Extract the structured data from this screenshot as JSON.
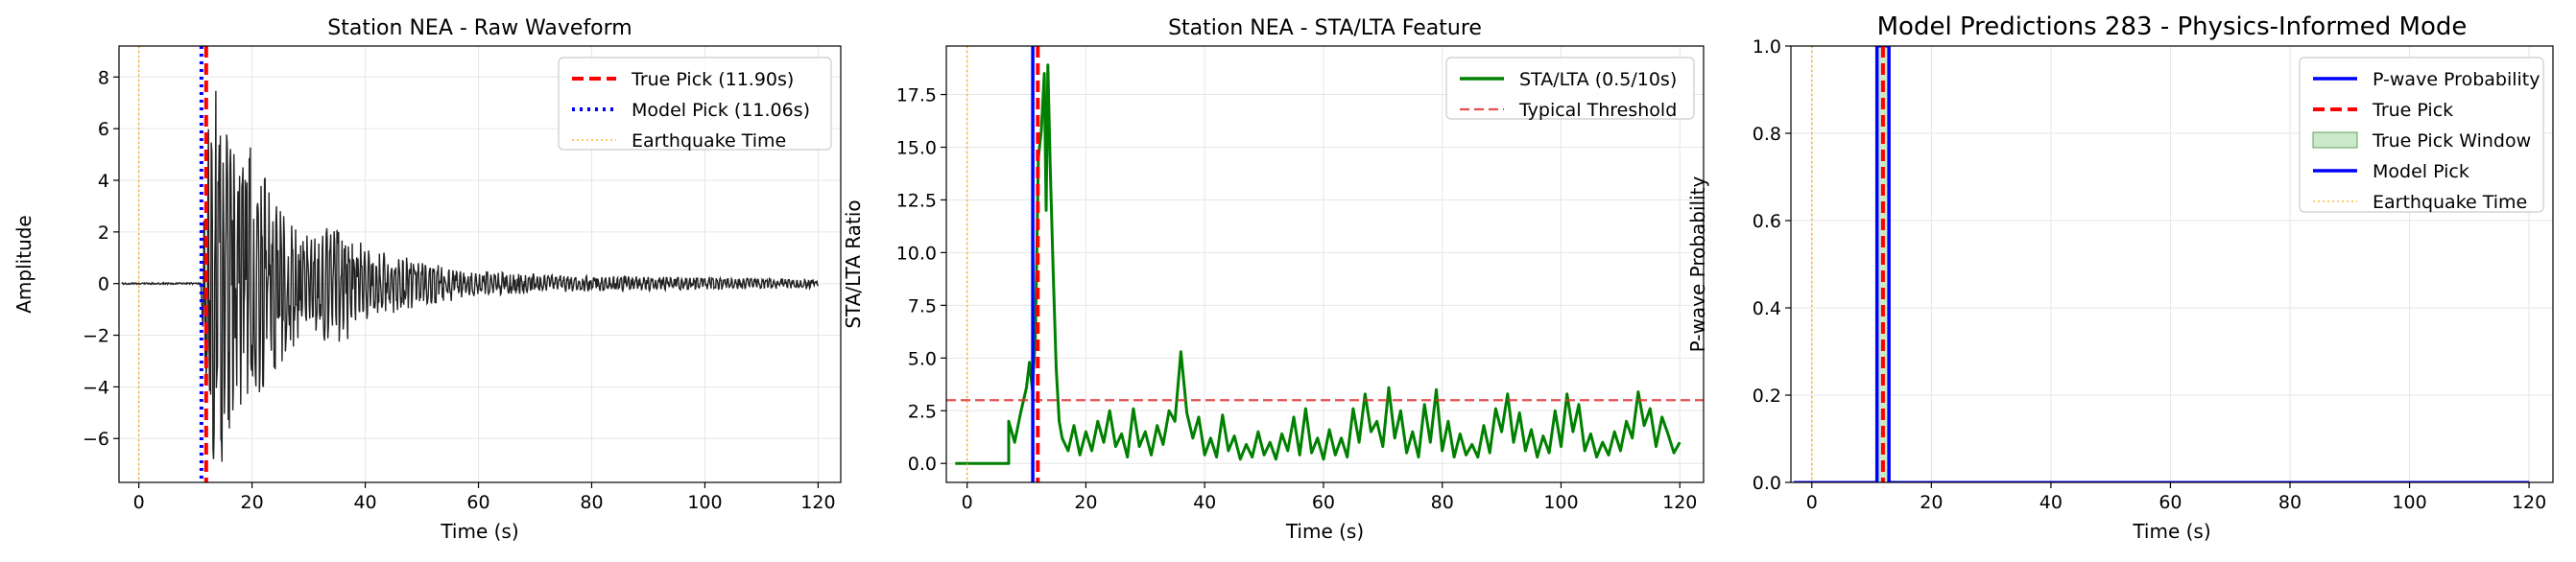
{
  "colors": {
    "waveform": "#222222",
    "true_pick": "#ff0000",
    "model_pick_dotted": "#0000ff",
    "model_pick": "#0000ff",
    "earthquake": "#ffa500",
    "sta_lta": "#008000",
    "threshold": "#e03030",
    "pick_window": "#a6d8a6",
    "grid": "#e6e6e6"
  },
  "chart_data": [
    {
      "type": "line",
      "title": "Station NEA - Raw Waveform",
      "xlabel": "Time (s)",
      "ylabel": "Amplitude",
      "xlim": [
        -3.5,
        124
      ],
      "ylim": [
        -7.7,
        9.2
      ],
      "xticks": [
        0,
        20,
        40,
        60,
        80,
        100,
        120
      ],
      "xtick_labels": [
        "0",
        "20",
        "40",
        "60",
        "80",
        "100",
        "120"
      ],
      "yticks": [
        -6,
        -4,
        -2,
        0,
        2,
        4,
        6,
        8
      ],
      "ytick_labels": [
        "−6",
        "−4",
        "−2",
        "0",
        "2",
        "4",
        "6",
        "8"
      ],
      "grid": true,
      "legend_position": "upper-right",
      "legend": [
        {
          "label": "True Pick (11.90s)",
          "style": "dashed-thick",
          "color_key": "true_pick"
        },
        {
          "label": "Model Pick (11.06s)",
          "style": "dotted-thick",
          "color_key": "model_pick_dotted"
        },
        {
          "label": "Earthquake Time",
          "style": "dotted-thin",
          "color_key": "earthquake"
        }
      ],
      "vlines": [
        {
          "x": 11.9,
          "style": "dashed-thick",
          "color_key": "true_pick"
        },
        {
          "x": 11.06,
          "style": "dotted-thick",
          "color_key": "model_pick_dotted"
        },
        {
          "x": 0,
          "style": "dotted-thin",
          "color_key": "earthquake"
        }
      ],
      "hlines": [],
      "waveform": {
        "name": "waveform",
        "t_start": -3,
        "t_onset": 11.0,
        "t_end": 120,
        "envelope": [
          [
            11,
            2.0
          ],
          [
            13,
            8.4
          ],
          [
            15,
            7.0
          ],
          [
            20,
            5.5
          ],
          [
            25,
            3.2
          ],
          [
            30,
            2.0
          ],
          [
            36,
            2.5
          ],
          [
            40,
            1.4
          ],
          [
            50,
            0.9
          ],
          [
            60,
            0.5
          ],
          [
            80,
            0.32
          ],
          [
            100,
            0.26
          ],
          [
            120,
            0.18
          ]
        ]
      }
    },
    {
      "type": "line",
      "title": "Station NEA - STA/LTA Feature",
      "xlabel": "Time (s)",
      "ylabel": "STA/LTA Ratio",
      "xlim": [
        -3.5,
        124
      ],
      "ylim": [
        -0.9,
        19.8
      ],
      "xticks": [
        0,
        20,
        40,
        60,
        80,
        100,
        120
      ],
      "xtick_labels": [
        "0",
        "20",
        "40",
        "60",
        "80",
        "100",
        "120"
      ],
      "yticks": [
        0.0,
        2.5,
        5.0,
        7.5,
        10.0,
        12.5,
        15.0,
        17.5
      ],
      "ytick_labels": [
        "0.0",
        "2.5",
        "5.0",
        "7.5",
        "10.0",
        "12.5",
        "15.0",
        "17.5"
      ],
      "grid": true,
      "legend_position": "upper-right",
      "legend": [
        {
          "label": "STA/LTA (0.5/10s)",
          "style": "solid",
          "color_key": "sta_lta"
        },
        {
          "label": "Typical Threshold",
          "style": "dashed-thin",
          "color_key": "threshold"
        }
      ],
      "vlines": [
        {
          "x": 11.06,
          "style": "solid-thick",
          "color_key": "model_pick"
        },
        {
          "x": 11.9,
          "style": "dashed-thick",
          "color_key": "true_pick"
        },
        {
          "x": 0,
          "style": "dotted-thin",
          "color_key": "earthquake"
        }
      ],
      "hlines": [
        {
          "y": 3.0,
          "style": "dashed-thin",
          "color_key": "threshold"
        }
      ],
      "series": [
        {
          "name": "STA/LTA (0.5/10s)",
          "points": [
            [
              -2,
              0
            ],
            [
              7,
              0
            ],
            [
              7,
              2.0
            ],
            [
              8,
              1.0
            ],
            [
              9,
              2.4
            ],
            [
              10,
              3.6
            ],
            [
              10.5,
              4.8
            ],
            [
              11,
              3.5
            ],
            [
              11.5,
              6.0
            ],
            [
              12,
              14.5
            ],
            [
              12.5,
              15.8
            ],
            [
              13,
              18.5
            ],
            [
              13.3,
              12.0
            ],
            [
              13.6,
              18.9
            ],
            [
              14,
              14.0
            ],
            [
              14.5,
              9.0
            ],
            [
              15,
              4.5
            ],
            [
              15.5,
              2.0
            ],
            [
              16,
              1.2
            ],
            [
              17,
              0.6
            ],
            [
              18,
              1.8
            ],
            [
              19,
              0.4
            ],
            [
              20,
              1.5
            ],
            [
              21,
              0.6
            ],
            [
              22,
              2.0
            ],
            [
              23,
              1.0
            ],
            [
              24,
              2.5
            ],
            [
              25,
              0.8
            ],
            [
              26,
              1.4
            ],
            [
              27,
              0.3
            ],
            [
              28,
              2.6
            ],
            [
              29,
              0.8
            ],
            [
              30,
              1.5
            ],
            [
              31,
              0.4
            ],
            [
              32,
              1.8
            ],
            [
              33,
              0.9
            ],
            [
              34,
              2.5
            ],
            [
              35,
              2.0
            ],
            [
              36,
              5.3
            ],
            [
              37,
              2.4
            ],
            [
              38,
              1.2
            ],
            [
              39,
              2.2
            ],
            [
              40,
              0.4
            ],
            [
              41,
              1.2
            ],
            [
              42,
              0.3
            ],
            [
              43,
              2.3
            ],
            [
              44,
              0.6
            ],
            [
              45,
              1.3
            ],
            [
              46,
              0.2
            ],
            [
              47,
              0.9
            ],
            [
              48,
              0.3
            ],
            [
              49,
              1.5
            ],
            [
              50,
              0.4
            ],
            [
              51,
              1.0
            ],
            [
              52,
              0.2
            ],
            [
              53,
              1.4
            ],
            [
              54,
              0.6
            ],
            [
              55,
              2.2
            ],
            [
              56,
              0.4
            ],
            [
              57,
              2.6
            ],
            [
              58,
              0.5
            ],
            [
              59,
              1.2
            ],
            [
              60,
              0.2
            ],
            [
              61,
              1.6
            ],
            [
              62,
              0.4
            ],
            [
              63,
              1.2
            ],
            [
              64,
              0.3
            ],
            [
              65,
              2.6
            ],
            [
              66,
              1.0
            ],
            [
              67,
              3.3
            ],
            [
              68,
              1.5
            ],
            [
              69,
              2.0
            ],
            [
              70,
              0.8
            ],
            [
              71,
              3.6
            ],
            [
              72,
              1.2
            ],
            [
              73,
              2.5
            ],
            [
              74,
              0.5
            ],
            [
              75,
              1.5
            ],
            [
              76,
              0.3
            ],
            [
              77,
              2.8
            ],
            [
              78,
              1.0
            ],
            [
              79,
              3.5
            ],
            [
              80,
              0.6
            ],
            [
              81,
              2.0
            ],
            [
              82,
              0.3
            ],
            [
              83,
              1.4
            ],
            [
              84,
              0.4
            ],
            [
              85,
              0.9
            ],
            [
              86,
              0.3
            ],
            [
              87,
              1.8
            ],
            [
              88,
              0.5
            ],
            [
              89,
              2.6
            ],
            [
              90,
              1.5
            ],
            [
              91,
              3.3
            ],
            [
              92,
              1.0
            ],
            [
              93,
              2.4
            ],
            [
              94,
              0.6
            ],
            [
              95,
              1.6
            ],
            [
              96,
              0.3
            ],
            [
              97,
              1.3
            ],
            [
              98,
              0.5
            ],
            [
              99,
              2.5
            ],
            [
              100,
              0.8
            ],
            [
              101,
              3.3
            ],
            [
              102,
              1.5
            ],
            [
              103,
              2.8
            ],
            [
              104,
              0.6
            ],
            [
              105,
              1.4
            ],
            [
              106,
              0.3
            ],
            [
              107,
              1.0
            ],
            [
              108,
              0.4
            ],
            [
              109,
              1.5
            ],
            [
              110,
              0.6
            ],
            [
              111,
              2.0
            ],
            [
              112,
              1.2
            ],
            [
              113,
              3.4
            ],
            [
              114,
              1.8
            ],
            [
              115,
              2.6
            ],
            [
              116,
              0.8
            ],
            [
              117,
              2.2
            ],
            [
              118,
              1.4
            ],
            [
              119,
              0.5
            ],
            [
              120,
              1.0
            ]
          ]
        }
      ]
    },
    {
      "type": "line",
      "title": "Model Predictions 283 - Physics-Informed Mode",
      "xlabel": "Time (s)",
      "ylabel": "P-wave Probability",
      "xlim": [
        -3.5,
        124
      ],
      "ylim": [
        0,
        1
      ],
      "xticks": [
        0,
        20,
        40,
        60,
        80,
        100,
        120
      ],
      "xtick_labels": [
        "0",
        "20",
        "40",
        "60",
        "80",
        "100",
        "120"
      ],
      "yticks": [
        0.0,
        0.2,
        0.4,
        0.6,
        0.8,
        1.0
      ],
      "ytick_labels": [
        "0.0",
        "0.2",
        "0.4",
        "0.6",
        "0.8",
        "1.0"
      ],
      "grid": true,
      "legend_position": "upper-right",
      "legend": [
        {
          "label": "P-wave Probability",
          "style": "solid",
          "color_key": "model_pick"
        },
        {
          "label": "True Pick",
          "style": "dashed-thick",
          "color_key": "true_pick"
        },
        {
          "label": "True Pick Window",
          "style": "patch",
          "color_key": "pick_window"
        },
        {
          "label": "Model Pick",
          "style": "solid",
          "color_key": "model_pick"
        },
        {
          "label": "Earthquake Time",
          "style": "dotted-thin",
          "color_key": "earthquake"
        }
      ],
      "spans": [
        {
          "x0": 10.9,
          "x1": 12.9,
          "color_key": "pick_window"
        }
      ],
      "vlines": [
        {
          "x": 10.9,
          "style": "solid-thick",
          "color_key": "model_pick"
        },
        {
          "x": 12.9,
          "style": "solid-thick",
          "color_key": "model_pick"
        },
        {
          "x": 11.9,
          "style": "dashed-thick",
          "color_key": "true_pick"
        },
        {
          "x": 0,
          "style": "dotted-thin",
          "color_key": "earthquake"
        }
      ],
      "hlines": [],
      "series": [
        {
          "name": "P-wave Probability",
          "points": [
            [
              -3,
              0
            ],
            [
              10.9,
              0
            ],
            [
              10.9,
              1
            ],
            [
              12.9,
              1
            ],
            [
              12.9,
              0
            ],
            [
              120,
              0
            ]
          ]
        }
      ]
    }
  ]
}
